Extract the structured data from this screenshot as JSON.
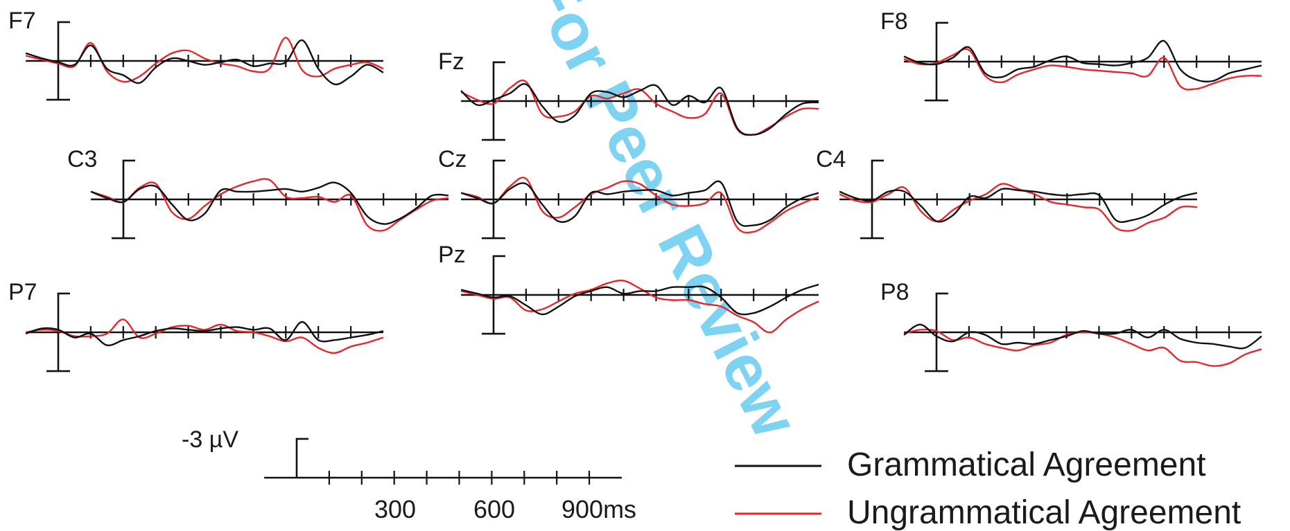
{
  "watermark": {
    "text": "For Peer Review",
    "color": "#5ec8ef"
  },
  "colors": {
    "grammatical": "#111111",
    "ungrammatical": "#e5272a",
    "axes": "#111111"
  },
  "chart_data": {
    "type": "line",
    "title": "",
    "time_unit": "ms",
    "x_range_ms": [
      -100,
      1000
    ],
    "tick_interval_ms": 100,
    "y_range_uV": [
      -3,
      3
    ],
    "polarity": "negative plotted up",
    "series_names": [
      "Grammatical Agreement",
      "Ungrammatical Agreement"
    ],
    "series_colors": [
      "#111111",
      "#e5272a"
    ],
    "calibration": {
      "amplitude_label": "-3 µV",
      "tick_labels": [
        "300",
        "600",
        "900ms"
      ],
      "tick_label_values_ms": [
        300,
        600,
        900
      ]
    },
    "legend": {
      "position": "bottom-right",
      "entries": [
        {
          "label": "Grammatical Agreement",
          "color": "#111111"
        },
        {
          "label": "Ungrammatical Agreement",
          "color": "#e5272a"
        }
      ]
    },
    "x_ms": [
      -100,
      -50,
      0,
      50,
      100,
      150,
      200,
      250,
      300,
      350,
      400,
      450,
      500,
      550,
      600,
      650,
      700,
      750,
      800,
      850,
      900,
      950,
      1000
    ],
    "channels": [
      {
        "name": "F7",
        "grammatical": [
          -0.6,
          -0.2,
          0.1,
          0.3,
          -1.2,
          0.6,
          1.1,
          1.7,
          0.5,
          -0.2,
          0,
          0.3,
          0.1,
          -0.1,
          0.4,
          0.2,
          0.1,
          -1.6,
          0.6,
          1.8,
          1.2,
          0.3,
          0.9
        ],
        "ungrammatical": [
          -0.4,
          -0.1,
          0.2,
          0.4,
          -1.4,
          0.8,
          1.6,
          1.2,
          0.2,
          -0.6,
          -0.8,
          -0.2,
          0.2,
          0.4,
          0.8,
          0.6,
          -1.8,
          0.7,
          1.2,
          0.6,
          0.3,
          0.1,
          0.6
        ]
      },
      {
        "name": "Fz",
        "grammatical": [
          -0.8,
          0.3,
          -0.1,
          -0.6,
          -1.3,
          0.4,
          1.6,
          1.1,
          -0.6,
          -0.7,
          -0.3,
          -0.8,
          -1.2,
          0.3,
          -0.4,
          0.1,
          -1.0,
          2.1,
          2.6,
          2.1,
          1.0,
          0.2,
          0.1
        ],
        "ungrammatical": [
          -0.7,
          -0.1,
          0.2,
          -1.0,
          -1.5,
          1.0,
          1.2,
          0.8,
          -0.4,
          -0.2,
          -0.6,
          -0.9,
          0.2,
          0.8,
          1.3,
          1.0,
          -0.6,
          2.2,
          2.6,
          2.0,
          1.2,
          0.6,
          0.6
        ]
      },
      {
        "name": "F8",
        "grammatical": [
          -0.4,
          0.1,
          0.2,
          -0.3,
          -1.1,
          0.9,
          1.2,
          0.6,
          0.4,
          -0.1,
          -0.4,
          0.1,
          0.2,
          0.3,
          0.1,
          -0.3,
          -1.6,
          0.6,
          1.4,
          1.5,
          0.9,
          0.6,
          0.3
        ],
        "ungrammatical": [
          -0.2,
          0.2,
          0.1,
          -0.5,
          -0.9,
          1.1,
          1.6,
          1.0,
          0.6,
          0.3,
          0.4,
          0.6,
          0.7,
          0.8,
          0.9,
          1.1,
          -0.3,
          1.9,
          2.1,
          1.7,
          1.3,
          1.1,
          1.1
        ]
      },
      {
        "name": "C3",
        "grammatical": [
          -0.6,
          -0.1,
          0.2,
          -0.8,
          -1.0,
          0.4,
          1.6,
          1.1,
          -0.7,
          -0.6,
          -0.6,
          -0.7,
          -0.8,
          -0.6,
          -0.9,
          -1.3,
          -0.5,
          1.3,
          1.9,
          1.5,
          0.7,
          -0.3,
          -0.3
        ],
        "ungrammatical": [
          -0.6,
          -0.2,
          0.2,
          -0.9,
          -1.2,
          1.0,
          1.5,
          0.5,
          -0.4,
          -1.0,
          -1.4,
          -1.5,
          -0.2,
          -0.1,
          -0.2,
          0.2,
          -0.3,
          2.0,
          2.4,
          1.6,
          0.8,
          0.1,
          -0.1
        ]
      },
      {
        "name": "Cz",
        "grammatical": [
          -0.5,
          -0.1,
          0.3,
          -0.8,
          -1.2,
          0.4,
          1.7,
          1.3,
          -0.5,
          -0.4,
          -0.6,
          -0.7,
          -0.7,
          -0.3,
          -0.5,
          -0.7,
          -1.3,
          1.7,
          2.0,
          1.6,
          0.6,
          -0.1,
          -0.5
        ],
        "ungrammatical": [
          -0.5,
          -0.2,
          0.3,
          -1.0,
          -1.6,
          0.9,
          1.4,
          0.6,
          -0.4,
          -0.9,
          -1.4,
          -1.2,
          -0.3,
          0.4,
          0.5,
          0.3,
          -0.5,
          2.2,
          2.5,
          1.8,
          0.9,
          0.3,
          -0.2
        ]
      },
      {
        "name": "C4",
        "grammatical": [
          -0.6,
          -0.1,
          0.1,
          -0.6,
          -0.6,
          0.5,
          1.7,
          1.2,
          -0.2,
          -0.1,
          -0.8,
          -0.7,
          -0.6,
          -0.4,
          -0.3,
          -0.4,
          -0.3,
          1.6,
          1.6,
          1.2,
          0.4,
          -0.2,
          -0.5
        ],
        "ungrammatical": [
          -0.4,
          0.1,
          0.2,
          -0.4,
          -0.9,
          0.9,
          1.7,
          0.8,
          0.1,
          -0.4,
          -1.2,
          -0.8,
          -0.4,
          0.2,
          0.4,
          0.6,
          0.8,
          2.2,
          2.4,
          1.8,
          1.4,
          0.6,
          0.6
        ]
      },
      {
        "name": "P7",
        "grammatical": [
          0.1,
          -0.3,
          -0.2,
          0.4,
          0.1,
          1.0,
          0.6,
          0.3,
          -0.1,
          -0.3,
          -0.2,
          -0.1,
          -0.3,
          -0.4,
          -0.2,
          -0.3,
          0.6,
          -0.8,
          0.6,
          0.6,
          0.4,
          0.2,
          -0.1
        ],
        "ungrammatical": [
          0.0,
          -0.2,
          -0.1,
          0.3,
          0.3,
          0.1,
          -1.0,
          0.4,
          0.1,
          -0.4,
          -0.5,
          -0.2,
          -0.6,
          -0.1,
          0.0,
          0.3,
          0.7,
          0.4,
          1.2,
          1.6,
          1.1,
          0.8,
          0.4
        ]
      },
      {
        "name": "Pz",
        "grammatical": [
          -0.4,
          -0.1,
          0.2,
          0.1,
          0.8,
          1.5,
          0.9,
          0.1,
          -0.3,
          -0.6,
          -0.1,
          -0.3,
          -0.3,
          -0.6,
          -0.6,
          -0.6,
          0.2,
          1.4,
          1.4,
          0.9,
          0.2,
          -0.4,
          -0.8
        ],
        "ungrammatical": [
          -0.3,
          0.0,
          0.3,
          0.2,
          1.2,
          1.1,
          0.5,
          -0.1,
          -0.4,
          -0.9,
          -1.1,
          -0.5,
          0.2,
          0.4,
          0.4,
          0.7,
          0.9,
          1.6,
          2.1,
          2.9,
          1.9,
          1.1,
          0.5
        ]
      },
      {
        "name": "P8",
        "grammatical": [
          0.2,
          -0.6,
          0.3,
          0.7,
          0.0,
          0.2,
          0.9,
          0.8,
          0.9,
          0.6,
          0.3,
          -0.1,
          0.1,
          0.1,
          -0.2,
          0.4,
          -0.2,
          0.5,
          0.8,
          0.9,
          1.1,
          1.2,
          0.3
        ],
        "ungrammatical": [
          0.1,
          -0.2,
          -0.1,
          0.6,
          0.4,
          0.9,
          1.2,
          1.4,
          1.0,
          0.8,
          0.2,
          0.0,
          0.1,
          0.4,
          0.9,
          1.4,
          1.2,
          2.2,
          2.3,
          2.6,
          2.4,
          1.7,
          1.3
        ]
      }
    ]
  }
}
